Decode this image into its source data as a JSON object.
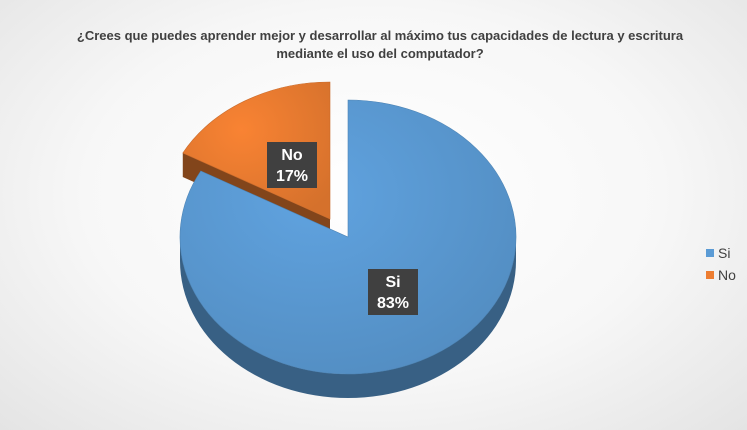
{
  "chart_data": {
    "type": "pie",
    "title": "¿Crees que puedes aprender mejor y desarrollar al máximo tus capacidades de lectura y escritura mediante el uso del computador?",
    "categories": [
      "Si",
      "No"
    ],
    "values": [
      83,
      17
    ],
    "value_labels": [
      "83%",
      "17%"
    ],
    "exploded": [
      "No"
    ],
    "style": "3d",
    "colors": [
      "#5B9BD5",
      "#ED7D31"
    ],
    "legend": {
      "position": "right",
      "entries": [
        "Si",
        "No"
      ]
    }
  }
}
